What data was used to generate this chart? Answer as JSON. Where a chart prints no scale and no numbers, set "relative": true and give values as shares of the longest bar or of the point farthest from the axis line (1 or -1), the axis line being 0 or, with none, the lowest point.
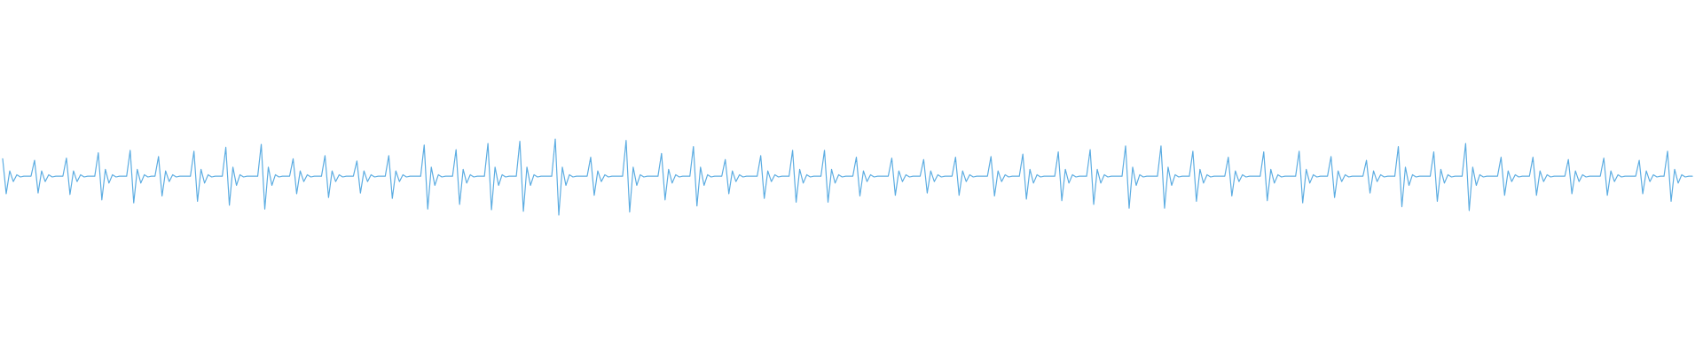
{
  "chart_data": {
    "type": "line",
    "relative": true,
    "marker": "none",
    "color": "#5dade2",
    "categories": [
      null,
      null,
      null,
      null,
      null,
      null,
      null,
      null,
      null,
      null,
      null,
      null,
      null,
      null,
      null,
      null,
      null,
      null,
      null,
      null,
      null,
      null,
      null,
      null,
      null,
      null,
      null,
      null,
      null,
      null,
      null,
      null,
      null,
      null,
      null,
      null,
      null,
      null,
      null,
      null,
      null,
      null,
      null,
      null,
      null,
      null,
      null,
      null,
      null,
      null,
      null,
      null,
      null,
      null,
      null,
      null,
      null,
      null,
      null,
      null,
      null,
      null,
      null,
      null,
      null,
      null,
      null,
      null,
      null,
      null,
      null,
      null,
      null,
      null,
      null,
      null,
      null,
      null,
      null,
      null,
      null,
      null,
      null,
      null,
      null,
      null,
      null,
      null,
      null,
      null,
      null,
      null,
      null,
      null,
      null,
      null,
      null,
      null,
      null,
      null,
      null,
      null,
      null,
      null,
      null,
      null,
      null,
      null,
      null,
      null,
      null,
      null,
      null,
      null,
      null,
      null,
      null,
      null,
      null,
      null,
      null,
      null,
      null,
      null,
      null,
      null,
      null,
      null,
      null,
      null,
      null,
      null,
      null,
      null,
      null,
      null,
      null,
      null,
      null,
      null,
      null,
      null,
      null,
      null,
      null,
      null,
      null,
      null,
      null,
      null,
      null,
      null,
      null,
      null,
      null,
      null,
      null,
      null,
      null,
      null,
      null,
      null,
      null,
      null,
      null,
      null,
      null,
      null,
      null,
      null,
      null,
      null,
      null,
      null,
      null,
      null,
      null,
      null,
      null,
      null,
      null,
      null,
      null,
      null,
      null,
      null,
      null,
      null,
      null,
      null,
      null,
      null,
      null,
      null,
      null,
      null,
      null,
      null,
      null,
      null,
      null,
      null,
      null,
      null,
      null,
      null,
      null,
      null,
      null,
      null,
      null,
      null,
      null,
      null,
      null,
      null,
      null,
      null,
      null,
      null,
      null,
      null,
      null,
      null,
      null,
      null,
      null,
      null,
      null,
      null,
      null,
      null,
      null,
      null,
      null,
      null,
      null,
      null,
      null,
      null,
      null,
      null,
      null,
      null,
      null,
      null,
      null,
      null,
      null,
      null,
      null,
      null,
      null,
      null,
      null,
      null,
      null,
      null,
      null,
      null,
      null,
      null,
      null,
      null,
      null,
      null,
      null,
      null,
      null,
      null,
      null,
      null,
      null,
      null,
      null,
      null,
      null,
      null,
      null,
      null,
      null,
      null,
      null,
      null,
      null,
      null,
      null,
      null,
      null,
      null,
      null,
      null,
      null,
      null,
      null,
      null,
      null,
      null,
      null,
      null,
      null,
      null,
      null,
      null,
      null,
      null,
      null,
      null,
      null,
      null,
      null,
      null,
      null,
      null,
      null,
      null,
      null,
      null,
      null,
      null,
      null,
      null,
      null,
      null,
      null,
      null,
      null,
      null,
      null,
      null,
      null,
      null,
      null,
      null,
      null,
      null,
      null,
      null,
      null,
      null,
      null,
      null,
      null,
      null,
      null,
      null,
      null,
      null,
      null,
      null,
      null,
      null,
      null,
      null,
      null,
      null,
      null,
      null,
      null,
      null,
      null,
      null,
      null,
      null,
      null,
      null,
      null,
      null,
      null,
      null,
      null,
      null,
      null,
      null,
      null,
      null,
      null,
      null,
      null,
      null,
      null,
      null,
      null,
      null,
      null,
      null,
      null,
      null,
      null,
      null,
      null,
      null,
      null,
      null,
      null,
      null,
      null,
      null,
      null,
      null,
      null,
      null,
      null,
      null,
      null,
      null,
      null,
      null,
      null,
      null,
      null,
      null,
      null,
      null,
      null,
      null,
      null,
      null,
      null,
      null,
      null,
      null,
      null,
      null,
      null,
      null,
      null,
      null,
      null,
      null,
      null,
      null,
      null,
      null,
      null,
      null,
      null,
      null,
      null,
      null,
      null,
      null,
      null,
      null,
      null,
      null,
      null,
      null,
      null,
      null,
      null,
      null,
      null,
      null,
      null,
      null,
      null,
      null,
      null,
      null,
      null,
      null,
      null,
      null,
      null,
      null,
      null,
      null,
      null,
      null,
      null,
      null,
      null,
      null,
      null,
      null,
      null,
      null
    ],
    "values": [
      0.74,
      0.28,
      0.58,
      0.44,
      0.53,
      0.5,
      0.51,
      0.51,
      0.51,
      0.72,
      0.29,
      0.58,
      0.44,
      0.53,
      0.5,
      0.51,
      0.51,
      0.51,
      0.75,
      0.27,
      0.58,
      0.44,
      0.53,
      0.5,
      0.51,
      0.51,
      0.51,
      0.82,
      0.2,
      0.6,
      0.42,
      0.53,
      0.5,
      0.51,
      0.51,
      0.51,
      0.85,
      0.16,
      0.6,
      0.42,
      0.53,
      0.5,
      0.51,
      0.51,
      0.77,
      0.25,
      0.58,
      0.44,
      0.53,
      0.5,
      0.51,
      0.51,
      0.51,
      0.51,
      0.84,
      0.18,
      0.6,
      0.42,
      0.53,
      0.5,
      0.51,
      0.51,
      0.51,
      0.89,
      0.13,
      0.63,
      0.39,
      0.53,
      0.5,
      0.51,
      0.51,
      0.51,
      0.51,
      0.93,
      0.08,
      0.63,
      0.39,
      0.53,
      0.5,
      0.51,
      0.51,
      0.51,
      0.74,
      0.28,
      0.58,
      0.44,
      0.53,
      0.5,
      0.51,
      0.51,
      0.51,
      0.78,
      0.23,
      0.58,
      0.44,
      0.53,
      0.5,
      0.51,
      0.51,
      0.51,
      0.71,
      0.29,
      0.58,
      0.44,
      0.53,
      0.5,
      0.51,
      0.51,
      0.51,
      0.78,
      0.22,
      0.58,
      0.44,
      0.53,
      0.5,
      0.51,
      0.51,
      0.51,
      0.51,
      0.92,
      0.08,
      0.63,
      0.39,
      0.53,
      0.5,
      0.51,
      0.51,
      0.51,
      0.86,
      0.14,
      0.6,
      0.42,
      0.53,
      0.5,
      0.51,
      0.51,
      0.51,
      0.94,
      0.07,
      0.63,
      0.39,
      0.53,
      0.5,
      0.51,
      0.51,
      0.51,
      0.97,
      0.05,
      0.63,
      0.39,
      0.53,
      0.5,
      0.51,
      0.51,
      0.51,
      0.51,
      1,
      0,
      0.63,
      0.39,
      0.53,
      0.5,
      0.51,
      0.51,
      0.51,
      0.51,
      0.76,
      0.26,
      0.58,
      0.44,
      0.53,
      0.5,
      0.51,
      0.51,
      0.51,
      0.51,
      0.98,
      0.04,
      0.63,
      0.39,
      0.53,
      0.5,
      0.51,
      0.51,
      0.51,
      0.51,
      0.81,
      0.2,
      0.6,
      0.42,
      0.53,
      0.5,
      0.51,
      0.51,
      0.51,
      0.9,
      0.12,
      0.63,
      0.39,
      0.53,
      0.5,
      0.51,
      0.51,
      0.51,
      0.73,
      0.28,
      0.58,
      0.44,
      0.53,
      0.5,
      0.51,
      0.51,
      0.51,
      0.51,
      0.78,
      0.22,
      0.58,
      0.44,
      0.53,
      0.5,
      0.51,
      0.51,
      0.51,
      0.85,
      0.17,
      0.6,
      0.42,
      0.53,
      0.5,
      0.51,
      0.51,
      0.51,
      0.85,
      0.17,
      0.6,
      0.42,
      0.53,
      0.5,
      0.51,
      0.51,
      0.51,
      0.76,
      0.25,
      0.58,
      0.44,
      0.53,
      0.5,
      0.51,
      0.51,
      0.51,
      0.51,
      0.75,
      0.26,
      0.58,
      0.44,
      0.53,
      0.5,
      0.51,
      0.51,
      0.51,
      0.73,
      0.29,
      0.58,
      0.44,
      0.53,
      0.5,
      0.51,
      0.51,
      0.51,
      0.76,
      0.26,
      0.58,
      0.44,
      0.53,
      0.5,
      0.51,
      0.51,
      0.51,
      0.51,
      0.77,
      0.25,
      0.58,
      0.44,
      0.53,
      0.5,
      0.51,
      0.51,
      0.51,
      0.8,
      0.21,
      0.6,
      0.42,
      0.53,
      0.5,
      0.51,
      0.51,
      0.51,
      0.51,
      0.83,
      0.19,
      0.6,
      0.42,
      0.53,
      0.5,
      0.51,
      0.51,
      0.51,
      0.86,
      0.14,
      0.6,
      0.42,
      0.53,
      0.5,
      0.51,
      0.51,
      0.51,
      0.51,
      0.91,
      0.09,
      0.63,
      0.39,
      0.53,
      0.5,
      0.51,
      0.51,
      0.51,
      0.51,
      0.91,
      0.09,
      0.63,
      0.39,
      0.53,
      0.5,
      0.51,
      0.51,
      0.51,
      0.84,
      0.18,
      0.6,
      0.42,
      0.53,
      0.5,
      0.51,
      0.51,
      0.51,
      0.51,
      0.76,
      0.25,
      0.58,
      0.44,
      0.53,
      0.5,
      0.51,
      0.51,
      0.51,
      0.51,
      0.83,
      0.19,
      0.6,
      0.42,
      0.53,
      0.5,
      0.51,
      0.51,
      0.51,
      0.51,
      0.84,
      0.16,
      0.6,
      0.42,
      0.53,
      0.5,
      0.51,
      0.51,
      0.51,
      0.77,
      0.23,
      0.58,
      0.44,
      0.53,
      0.5,
      0.51,
      0.51,
      0.51,
      0.51,
      0.72,
      0.29,
      0.58,
      0.44,
      0.53,
      0.5,
      0.51,
      0.51,
      0.51,
      0.9,
      0.11,
      0.63,
      0.39,
      0.53,
      0.5,
      0.51,
      0.51,
      0.51,
      0.51,
      0.83,
      0.18,
      0.6,
      0.42,
      0.53,
      0.5,
      0.51,
      0.51,
      0.51,
      0.94,
      0.06,
      0.63,
      0.39,
      0.53,
      0.5,
      0.51,
      0.51,
      0.51,
      0.51,
      0.76,
      0.26,
      0.58,
      0.44,
      0.53,
      0.5,
      0.51,
      0.51,
      0.51,
      0.76,
      0.26,
      0.58,
      0.44,
      0.53,
      0.5,
      0.51,
      0.51,
      0.51,
      0.51,
      0.73,
      0.28,
      0.58,
      0.44,
      0.53,
      0.5,
      0.51,
      0.51,
      0.51,
      0.51,
      0.75,
      0.26,
      0.58,
      0.44,
      0.53,
      0.5,
      0.51,
      0.51,
      0.51,
      0.51,
      0.72,
      0.28,
      0.58,
      0.44,
      0.53,
      0.5,
      0.51,
      0.51,
      0.84,
      0.18,
      0.6,
      0.42,
      0.53,
      0.5,
      0.51,
      0.51
    ]
  }
}
